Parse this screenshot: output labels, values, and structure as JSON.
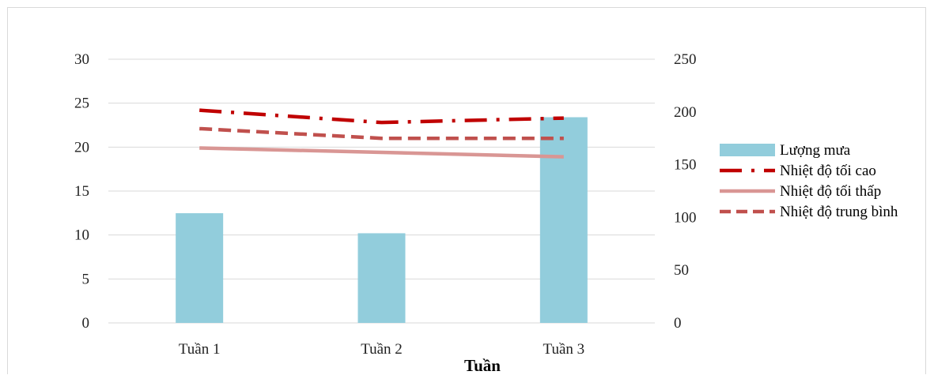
{
  "chart_data": {
    "type": "bar+line",
    "xlabel": "Tuần",
    "categories": [
      "Tuần 1",
      "Tuần 2",
      "Tuần 3"
    ],
    "y_left": {
      "lim": [
        0,
        30
      ],
      "ticks": [
        0,
        5,
        10,
        15,
        20,
        25,
        30
      ]
    },
    "y_right": {
      "lim": [
        0,
        250
      ],
      "ticks": [
        0,
        50,
        100,
        150,
        200,
        250
      ]
    },
    "grid": true,
    "legend_position": "right",
    "series": [
      {
        "name": "Lượng mưa",
        "kind": "bar",
        "axis": "right",
        "color": "#92CDDC",
        "values": [
          104,
          85,
          195
        ]
      },
      {
        "name": "Nhiệt độ tối cao",
        "kind": "line",
        "style": "dash-dot",
        "axis": "left",
        "color": "#C00000",
        "values": [
          24.2,
          22.8,
          23.3
        ]
      },
      {
        "name": "Nhiệt độ tối thấp",
        "kind": "line",
        "style": "solid",
        "axis": "left",
        "color": "#D99694",
        "values": [
          19.9,
          19.4,
          18.9
        ]
      },
      {
        "name": "Nhiệt độ trung bình",
        "kind": "line",
        "style": "dashed",
        "axis": "left",
        "color": "#C0504D",
        "values": [
          22.1,
          21.0,
          21.0
        ]
      }
    ]
  }
}
